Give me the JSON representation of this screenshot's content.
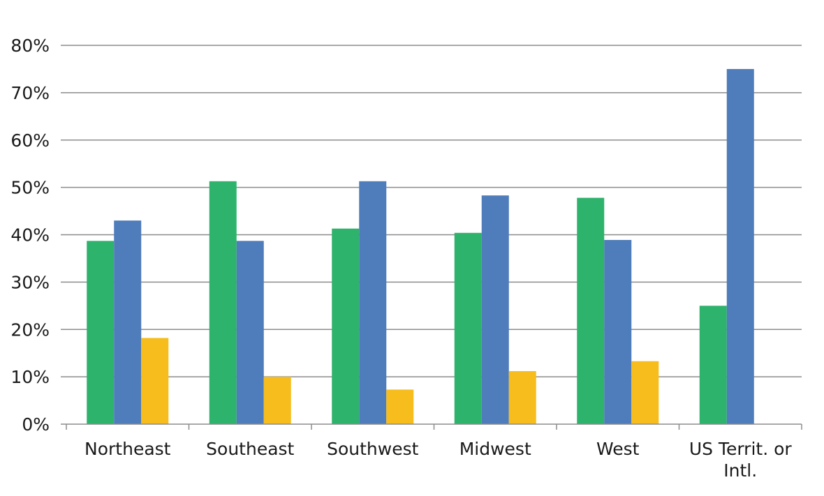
{
  "chart_data": {
    "type": "bar",
    "title": "",
    "xlabel": "",
    "ylabel": "",
    "categories": [
      [
        "Northeast"
      ],
      [
        "Southeast"
      ],
      [
        "Southwest"
      ],
      [
        "Midwest"
      ],
      [
        "West"
      ],
      [
        "US Territ. or",
        "Intl."
      ]
    ],
    "series": [
      {
        "color": "#2db36b",
        "values": [
          38.7,
          51.3,
          41.3,
          40.4,
          47.8,
          25.0
        ]
      },
      {
        "color": "#4f7cba",
        "values": [
          43.0,
          38.7,
          51.3,
          48.3,
          38.9,
          75.0
        ]
      },
      {
        "color": "#f6bd1c",
        "values": [
          18.2,
          10.0,
          7.3,
          11.2,
          13.3,
          0
        ]
      }
    ],
    "ylim": [
      0,
      80
    ],
    "yticks": [
      {
        "value": 0,
        "label": "0%"
      },
      {
        "value": 10,
        "label": "10%"
      },
      {
        "value": 20,
        "label": "20%"
      },
      {
        "value": 30,
        "label": "30%"
      },
      {
        "value": 40,
        "label": "40%"
      },
      {
        "value": 50,
        "label": "50%"
      },
      {
        "value": 60,
        "label": "60%"
      },
      {
        "value": 70,
        "label": "70%"
      },
      {
        "value": 80,
        "label": "80%"
      }
    ],
    "grid": true,
    "legend": "none"
  }
}
